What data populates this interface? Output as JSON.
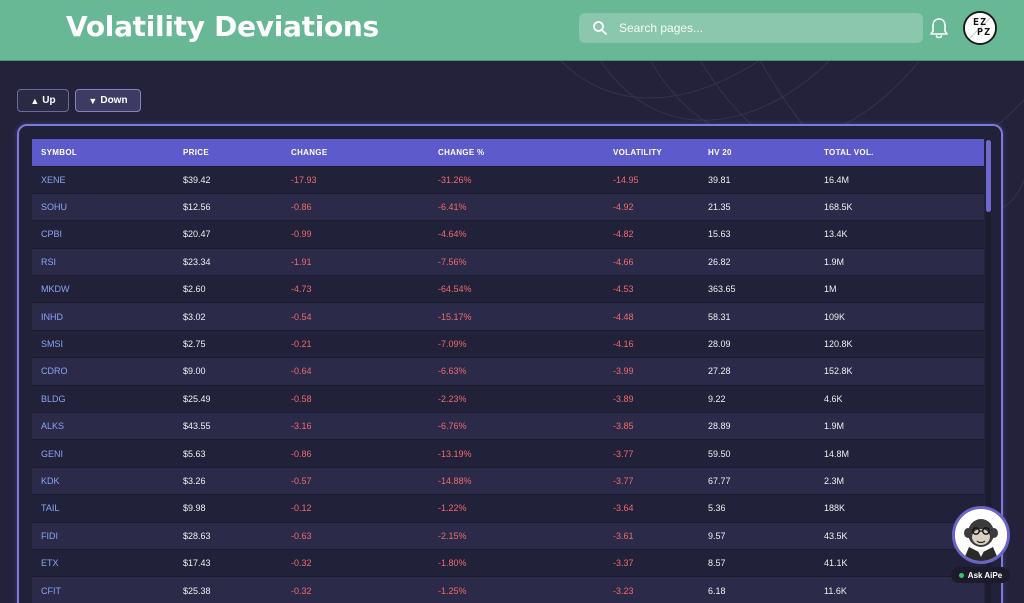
{
  "header": {
    "title": "Volatility Deviations",
    "search_placeholder": "Search pages...",
    "avatar_text_line1": "EZ",
    "avatar_text_line2": "PZ"
  },
  "toolbar": {
    "up_label": "Up",
    "down_label": "Down",
    "selected": "down"
  },
  "table": {
    "columns": [
      "SYMBOL",
      "PRICE",
      "CHANGE",
      "CHANGE %",
      "VOLATILITY",
      "HV 20",
      "TOTAL VOL."
    ],
    "rows": [
      {
        "symbol": "XENE",
        "price": "$39.42",
        "change": "-17.93",
        "change_pct": "-31.26%",
        "volatility": "-14.95",
        "hv20": "39.81",
        "total_vol": "16.4M"
      },
      {
        "symbol": "SOHU",
        "price": "$12.56",
        "change": "-0.86",
        "change_pct": "-6.41%",
        "volatility": "-4.92",
        "hv20": "21.35",
        "total_vol": "168.5K"
      },
      {
        "symbol": "CPBI",
        "price": "$20.47",
        "change": "-0.99",
        "change_pct": "-4.64%",
        "volatility": "-4.82",
        "hv20": "15.63",
        "total_vol": "13.4K"
      },
      {
        "symbol": "RSI",
        "price": "$23.34",
        "change": "-1.91",
        "change_pct": "-7.56%",
        "volatility": "-4.66",
        "hv20": "26.82",
        "total_vol": "1.9M"
      },
      {
        "symbol": "MKDW",
        "price": "$2.60",
        "change": "-4.73",
        "change_pct": "-64.54%",
        "volatility": "-4.53",
        "hv20": "363.65",
        "total_vol": "1M"
      },
      {
        "symbol": "INHD",
        "price": "$3.02",
        "change": "-0.54",
        "change_pct": "-15.17%",
        "volatility": "-4.48",
        "hv20": "58.31",
        "total_vol": "109K"
      },
      {
        "symbol": "SMSI",
        "price": "$2.75",
        "change": "-0.21",
        "change_pct": "-7.09%",
        "volatility": "-4.16",
        "hv20": "28.09",
        "total_vol": "120.8K"
      },
      {
        "symbol": "CDRO",
        "price": "$9.00",
        "change": "-0.64",
        "change_pct": "-6.63%",
        "volatility": "-3.99",
        "hv20": "27.28",
        "total_vol": "152.8K"
      },
      {
        "symbol": "BLDG",
        "price": "$25.49",
        "change": "-0.58",
        "change_pct": "-2.23%",
        "volatility": "-3.89",
        "hv20": "9.22",
        "total_vol": "4.6K"
      },
      {
        "symbol": "ALKS",
        "price": "$43.55",
        "change": "-3.16",
        "change_pct": "-6.76%",
        "volatility": "-3.85",
        "hv20": "28.89",
        "total_vol": "1.9M"
      },
      {
        "symbol": "GENI",
        "price": "$5.63",
        "change": "-0.86",
        "change_pct": "-13.19%",
        "volatility": "-3.77",
        "hv20": "59.50",
        "total_vol": "14.8M"
      },
      {
        "symbol": "KDK",
        "price": "$3.26",
        "change": "-0.57",
        "change_pct": "-14.88%",
        "volatility": "-3.77",
        "hv20": "67.77",
        "total_vol": "2.3M"
      },
      {
        "symbol": "TAIL",
        "price": "$9.98",
        "change": "-0.12",
        "change_pct": "-1.22%",
        "volatility": "-3.64",
        "hv20": "5.36",
        "total_vol": "188K"
      },
      {
        "symbol": "FIDI",
        "price": "$28.63",
        "change": "-0.63",
        "change_pct": "-2.15%",
        "volatility": "-3.61",
        "hv20": "9.57",
        "total_vol": "43.5K"
      },
      {
        "symbol": "ETX",
        "price": "$17.43",
        "change": "-0.32",
        "change_pct": "-1.80%",
        "volatility": "-3.37",
        "hv20": "8.57",
        "total_vol": "41.1K"
      },
      {
        "symbol": "CFIT",
        "price": "$25.38",
        "change": "-0.32",
        "change_pct": "-1.25%",
        "volatility": "-3.23",
        "hv20": "6.18",
        "total_vol": "11.6K"
      }
    ]
  },
  "assistant": {
    "badge_label": "Ask AiPe",
    "status_color": "#39c46b"
  },
  "colors": {
    "header_bg": "#69b895",
    "page_bg": "#23223a",
    "table_header_bg": "#5d5acb",
    "accent_border": "#7f79dd",
    "symbol_text": "#8aa6f2",
    "negative_text": "#ef6b6b"
  }
}
